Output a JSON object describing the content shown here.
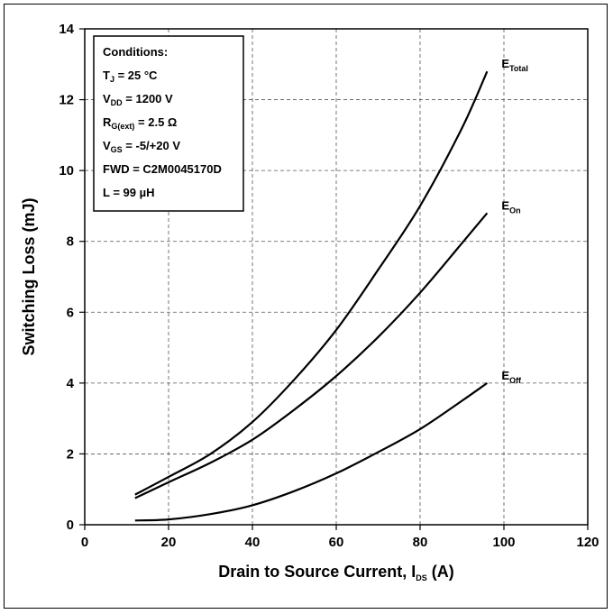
{
  "chart_data": {
    "type": "line",
    "title": "",
    "xlabel": "Drain to Source Current, I",
    "xlabel_sub": "DS",
    "xlabel_unit": " (A)",
    "ylabel": "Switching Loss (mJ)",
    "xlim": [
      0,
      120
    ],
    "ylim": [
      0,
      14
    ],
    "x_ticks": [
      0,
      20,
      40,
      60,
      80,
      100,
      120
    ],
    "y_ticks": [
      0,
      2,
      4,
      6,
      8,
      10,
      12,
      14
    ],
    "grid": true,
    "series": [
      {
        "main": "E",
        "sub": "Total",
        "x": [
          12,
          20,
          30,
          40,
          50,
          60,
          70,
          80,
          90,
          96
        ],
        "y": [
          0.85,
          1.35,
          2.0,
          2.9,
          4.1,
          5.5,
          7.2,
          9.0,
          11.2,
          12.8
        ]
      },
      {
        "main": "E",
        "sub": "On",
        "x": [
          12,
          20,
          30,
          40,
          50,
          60,
          70,
          80,
          90,
          96
        ],
        "y": [
          0.75,
          1.2,
          1.75,
          2.4,
          3.25,
          4.2,
          5.3,
          6.55,
          7.95,
          8.8
        ]
      },
      {
        "main": "E",
        "sub": "Off",
        "x": [
          12,
          20,
          30,
          40,
          50,
          60,
          70,
          80,
          90,
          96
        ],
        "y": [
          0.12,
          0.15,
          0.3,
          0.55,
          0.95,
          1.45,
          2.05,
          2.7,
          3.5,
          4.0
        ]
      }
    ],
    "conditions": [
      {
        "main": "Conditions:",
        "sub": "",
        "rest": ""
      },
      {
        "main": "T",
        "sub": "J",
        "rest": " = 25 °C"
      },
      {
        "main": "V",
        "sub": "DD",
        "rest": " = 1200 V"
      },
      {
        "main": "R",
        "sub": "G(ext)",
        "rest": " = 2.5 Ω"
      },
      {
        "main": "V",
        "sub": "GS",
        "rest": " = -5/+20 V"
      },
      {
        "main": "FWD = C2M0045170D",
        "sub": "",
        "rest": ""
      },
      {
        "main": "L = 99 µH",
        "sub": "",
        "rest": ""
      }
    ]
  }
}
